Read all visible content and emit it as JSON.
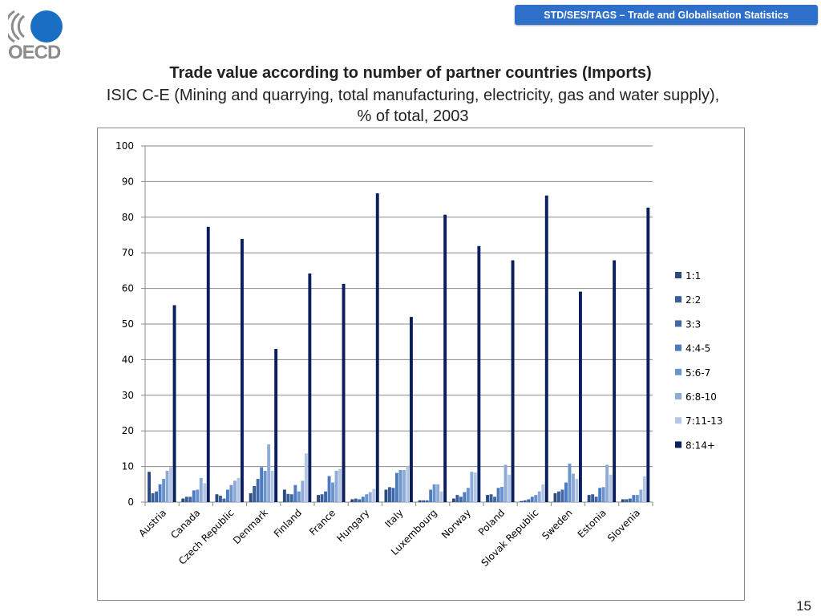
{
  "header": {
    "banner_text": "STD/SES/TAGS – Trade and Globalisation Statistics",
    "logo_text": "OECD",
    "title": "Trade value according to number of partner countries (Imports)",
    "subtitle_line1": "ISIC C-E (Mining and quarrying, total manufacturing, electricity, gas and water supply),",
    "subtitle_line2": "% of total, 2003"
  },
  "page_number": "15",
  "colors": {
    "banner": "#2e6fc9",
    "logo_circle": "#1a6fc4",
    "series": [
      "#2b4a7f",
      "#385d98",
      "#4068a8",
      "#4d7bbf",
      "#6b94cc",
      "#8eaad6",
      "#b3c6e6",
      "#0b1f5c"
    ]
  },
  "chart_data": {
    "type": "bar",
    "title": "",
    "xlabel": "",
    "ylabel": "",
    "ylim": [
      0,
      100
    ],
    "yticks": [
      0,
      10,
      20,
      30,
      40,
      50,
      60,
      70,
      80,
      90,
      100
    ],
    "grid": "horizontal",
    "legend_position": "right",
    "categories": [
      "Austria",
      "Canada",
      "Czech Republic",
      "Denmark",
      "Finland",
      "France",
      "Hungary",
      "Italy",
      "Luxembourg",
      "Norway",
      "Poland",
      "Slovak Republic",
      "Sweden",
      "Estonia",
      "Slovenia"
    ],
    "series": [
      {
        "name": "1:1",
        "values": [
          8.5,
          1.0,
          2.2,
          2.5,
          3.5,
          2.0,
          0.8,
          3.5,
          0.5,
          1.0,
          2.0,
          0.3,
          2.5,
          2.0,
          0.8
        ]
      },
      {
        "name": "2:2",
        "values": [
          2.5,
          1.5,
          1.8,
          4.5,
          2.3,
          2.2,
          1.0,
          4.2,
          0.5,
          2.0,
          2.2,
          0.5,
          3.0,
          2.2,
          0.8
        ]
      },
      {
        "name": "3:3",
        "values": [
          3.0,
          1.5,
          1.0,
          6.5,
          2.2,
          3.0,
          0.8,
          4.0,
          0.5,
          1.5,
          1.5,
          0.8,
          3.5,
          1.5,
          1.0
        ]
      },
      {
        "name": "4:4-5",
        "values": [
          5.0,
          3.3,
          3.5,
          9.8,
          4.8,
          7.3,
          1.5,
          8.2,
          3.5,
          2.8,
          4.0,
          1.5,
          5.5,
          4.0,
          2.0
        ]
      },
      {
        "name": "5:6-7",
        "values": [
          6.5,
          3.5,
          4.8,
          8.8,
          3.0,
          5.5,
          2.2,
          9.0,
          5.0,
          4.0,
          4.3,
          2.0,
          10.8,
          4.2,
          2.0
        ]
      },
      {
        "name": "6:8-10",
        "values": [
          8.8,
          6.8,
          6.0,
          16.2,
          6.0,
          8.8,
          2.8,
          9.0,
          5.0,
          8.5,
          10.5,
          3.0,
          8.0,
          10.5,
          3.5
        ]
      },
      {
        "name": "7:11-13",
        "values": [
          9.8,
          5.3,
          6.8,
          8.8,
          13.7,
          9.3,
          3.7,
          10.0,
          3.0,
          8.3,
          7.7,
          5.0,
          6.5,
          7.7,
          7.2
        ]
      },
      {
        "name": "8:14+",
        "values": [
          55.3,
          77.3,
          73.9,
          43.0,
          64.2,
          61.3,
          86.7,
          52.0,
          80.7,
          71.9,
          67.9,
          86.1,
          59.1,
          67.9,
          82.7
        ]
      }
    ]
  }
}
